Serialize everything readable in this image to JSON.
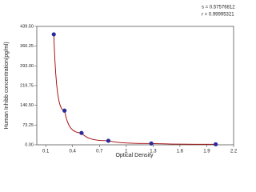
{
  "chart_data": {
    "type": "scatter",
    "x_label": "Optical Density",
    "y_label": "Human Inhibb concentration(pg/ml)",
    "annotations": [
      "s = 0.57576812",
      "r = 0.99995321"
    ],
    "x": [
      0.19,
      0.31,
      0.5,
      0.8,
      1.28,
      2.0
    ],
    "series": [
      {
        "color": "#2a2a9a",
        "line_color": "#a00000",
        "values": [
          410,
          127,
          44,
          15,
          5,
          2
        ]
      }
    ],
    "xlim": [
      0,
      2.2
    ],
    "xticks": [
      0.1,
      0.4,
      0.7,
      1,
      1.3,
      1.6,
      1.9,
      2.2
    ],
    "ylim": [
      0,
      439.5
    ],
    "yticks": [
      {
        "value": 0,
        "label": "0.00"
      },
      {
        "value": 73.25,
        "label": "73.25"
      },
      {
        "value": 146.5,
        "label": "146.50"
      },
      {
        "value": 219.75,
        "label": "219.75"
      },
      {
        "value": 293,
        "label": "293.00"
      },
      {
        "value": 366.25,
        "label": "366.25"
      },
      {
        "value": 439.5,
        "label": "439.50"
      }
    ]
  }
}
